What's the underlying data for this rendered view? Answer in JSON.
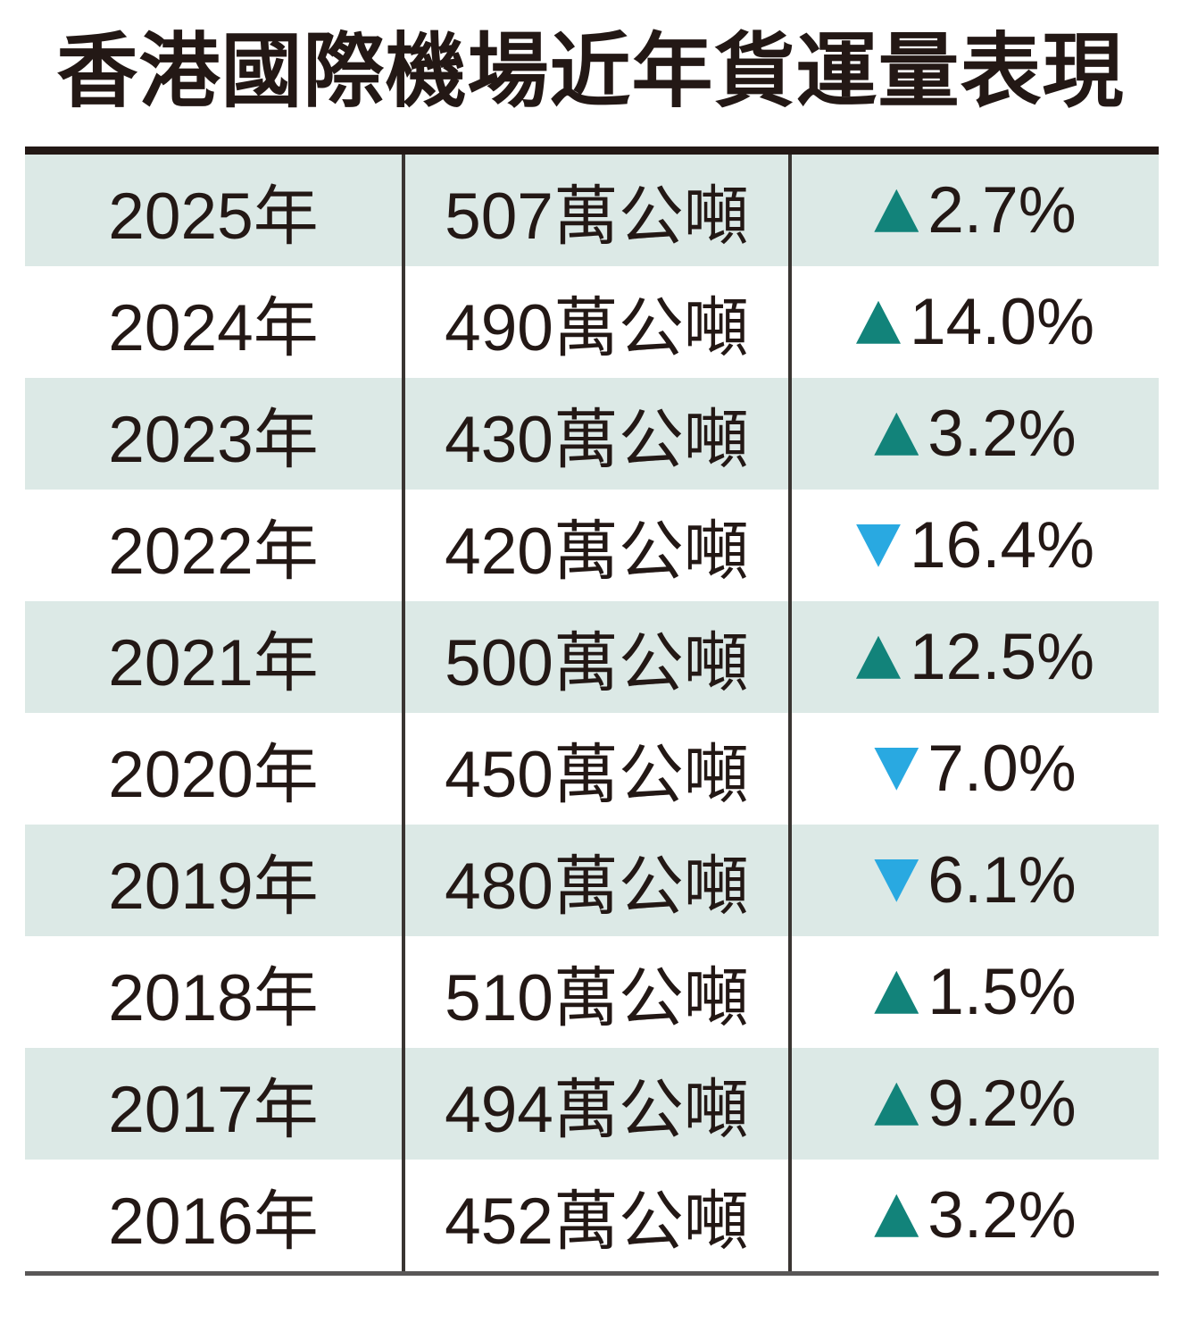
{
  "title": "香港國際機場近年貨運量表現",
  "colors": {
    "up_triangle": "#12837a",
    "down_triangle": "#29a9e1",
    "row_shade": "#dce9e6",
    "text": "#231815",
    "top_rule": "#231815",
    "bottom_rule": "#595757",
    "column_divider": "#3a3532"
  },
  "table": {
    "rows": [
      {
        "year": "2025年",
        "volume": "507萬公噸",
        "direction": "up",
        "change": "2.7%"
      },
      {
        "year": "2024年",
        "volume": "490萬公噸",
        "direction": "up",
        "change": "14.0%"
      },
      {
        "year": "2023年",
        "volume": "430萬公噸",
        "direction": "up",
        "change": "3.2%"
      },
      {
        "year": "2022年",
        "volume": "420萬公噸",
        "direction": "down",
        "change": "16.4%"
      },
      {
        "year": "2021年",
        "volume": "500萬公噸",
        "direction": "up",
        "change": "12.5%"
      },
      {
        "year": "2020年",
        "volume": "450萬公噸",
        "direction": "down",
        "change": "7.0%"
      },
      {
        "year": "2019年",
        "volume": "480萬公噸",
        "direction": "down",
        "change": "6.1%"
      },
      {
        "year": "2018年",
        "volume": "510萬公噸",
        "direction": "up",
        "change": "1.5%"
      },
      {
        "year": "2017年",
        "volume": "494萬公噸",
        "direction": "up",
        "change": "9.2%"
      },
      {
        "year": "2016年",
        "volume": "452萬公噸",
        "direction": "up",
        "change": "3.2%"
      }
    ]
  },
  "chart_data": {
    "type": "table",
    "title": "香港國際機場近年貨運量表現",
    "rows": [
      {
        "year": 2025,
        "volume_wan_tonnes": 507,
        "change_pct": 2.7
      },
      {
        "year": 2024,
        "volume_wan_tonnes": 490,
        "change_pct": 14.0
      },
      {
        "year": 2023,
        "volume_wan_tonnes": 430,
        "change_pct": 3.2
      },
      {
        "year": 2022,
        "volume_wan_tonnes": 420,
        "change_pct": -16.4
      },
      {
        "year": 2021,
        "volume_wan_tonnes": 500,
        "change_pct": 12.5
      },
      {
        "year": 2020,
        "volume_wan_tonnes": 450,
        "change_pct": -7.0
      },
      {
        "year": 2019,
        "volume_wan_tonnes": 480,
        "change_pct": -6.1
      },
      {
        "year": 2018,
        "volume_wan_tonnes": 510,
        "change_pct": 1.5
      },
      {
        "year": 2017,
        "volume_wan_tonnes": 494,
        "change_pct": 9.2
      },
      {
        "year": 2016,
        "volume_wan_tonnes": 452,
        "change_pct": 3.2
      }
    ],
    "units": "萬公噸 (10,000 metric tonnes)",
    "notes": "change_pct sign encodes up/down triangle direction"
  }
}
